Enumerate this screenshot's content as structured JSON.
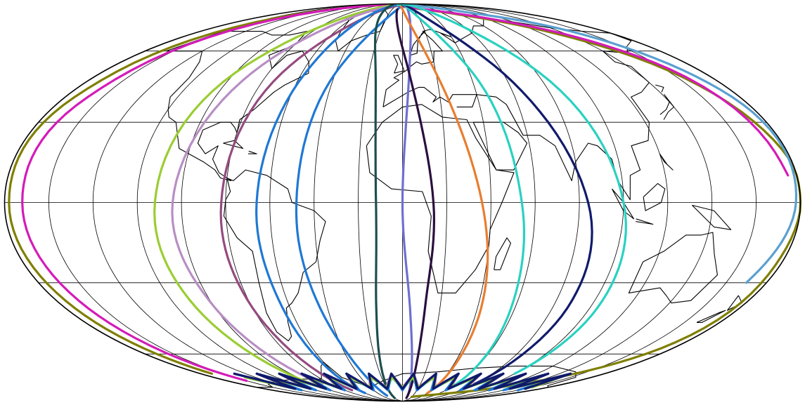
{
  "map": {
    "projection": "mollweide",
    "graticule": {
      "lon_step_deg": 20,
      "lat_step_deg": 30
    },
    "outline_color": "#000000",
    "coastline_color": "#000000",
    "background": "#ffffff"
  },
  "tracks": [
    {
      "id": "t01",
      "color": "#7f7f00",
      "pts": [
        [
          -170,
          -70
        ],
        [
          -175,
          -40
        ],
        [
          -178,
          0
        ],
        [
          -175,
          40
        ],
        [
          -150,
          80
        ],
        [
          -60,
          88
        ],
        [
          80,
          80
        ],
        [
          150,
          60
        ],
        [
          178,
          20
        ],
        [
          178,
          -20
        ],
        [
          170,
          -60
        ],
        [
          120,
          -78
        ],
        [
          20,
          -85
        ]
      ]
    },
    {
      "id": "t02",
      "color": "#d41bb8",
      "pts": [
        [
          -160,
          -74
        ],
        [
          -168,
          -40
        ],
        [
          -172,
          0
        ],
        [
          -168,
          40
        ],
        [
          -140,
          82
        ],
        [
          -40,
          88
        ],
        [
          100,
          78
        ],
        [
          160,
          55
        ],
        [
          176,
          10
        ]
      ]
    },
    {
      "id": "t03",
      "color": "#9acd32",
      "pts": [
        [
          -100,
          -78
        ],
        [
          -110,
          -40
        ],
        [
          -112,
          0
        ],
        [
          -100,
          50
        ],
        [
          -60,
          84
        ],
        [
          0,
          88
        ]
      ]
    },
    {
      "id": "t04",
      "color": "#b88ec4",
      "pts": [
        [
          -90,
          -76
        ],
        [
          -100,
          -40
        ],
        [
          -104,
          0
        ],
        [
          -90,
          50
        ],
        [
          -60,
          80
        ],
        [
          -20,
          88
        ]
      ]
    },
    {
      "id": "t05",
      "color": "#944b7f",
      "pts": [
        [
          -70,
          -80
        ],
        [
          -80,
          -40
        ],
        [
          -82,
          0
        ],
        [
          -72,
          50
        ],
        [
          -40,
          82
        ],
        [
          0,
          88
        ]
      ]
    },
    {
      "id": "t06",
      "color": "#1f78d4",
      "pts": [
        [
          -60,
          -82
        ],
        [
          -64,
          -40
        ],
        [
          -66,
          0
        ],
        [
          -58,
          50
        ],
        [
          -40,
          84
        ],
        [
          0,
          89
        ]
      ]
    },
    {
      "id": "t07",
      "color": "#1f78d4",
      "pts": [
        [
          -30,
          -84
        ],
        [
          -44,
          -40
        ],
        [
          -48,
          0
        ],
        [
          -40,
          50
        ],
        [
          -10,
          84
        ],
        [
          30,
          88
        ]
      ]
    },
    {
      "id": "t08",
      "color": "#1d4f4f",
      "pts": [
        [
          -20,
          -86
        ],
        [
          -14,
          -40
        ],
        [
          -12,
          0
        ],
        [
          -16,
          50
        ],
        [
          -30,
          80
        ],
        [
          -40,
          88
        ]
      ]
    },
    {
      "id": "t09",
      "color": "#6f6fd0",
      "pts": [
        [
          10,
          -84
        ],
        [
          4,
          -40
        ],
        [
          0,
          0
        ],
        [
          4,
          50
        ],
        [
          10,
          84
        ]
      ]
    },
    {
      "id": "t10",
      "color": "#2a0f3f",
      "pts": [
        [
          10,
          -86
        ],
        [
          12,
          -40
        ],
        [
          14,
          0
        ],
        [
          4,
          50
        ],
        [
          -10,
          84
        ]
      ]
    },
    {
      "id": "t11",
      "color": "#e87d2f",
      "pts": [
        [
          40,
          -82
        ],
        [
          42,
          -40
        ],
        [
          36,
          0
        ],
        [
          20,
          50
        ],
        [
          0,
          84
        ],
        [
          -20,
          88
        ]
      ]
    },
    {
      "id": "t12",
      "color": "#2ad1c1",
      "pts": [
        [
          60,
          -78
        ],
        [
          58,
          -40
        ],
        [
          54,
          0
        ],
        [
          42,
          50
        ],
        [
          10,
          86
        ],
        [
          -20,
          88
        ]
      ]
    },
    {
      "id": "t13",
      "color": "#101a6b",
      "pts": [
        [
          80,
          -76
        ],
        [
          88,
          -40
        ],
        [
          84,
          0
        ],
        [
          60,
          50
        ],
        [
          20,
          84
        ],
        [
          0,
          88
        ]
      ]
    },
    {
      "id": "t14",
      "color": "#5aa0d0",
      "pts": [
        [
          170,
          -30
        ],
        [
          178,
          0
        ],
        [
          176,
          40
        ],
        [
          150,
          70
        ],
        [
          100,
          82
        ],
        [
          40,
          88
        ]
      ]
    },
    {
      "id": "t15",
      "color": "#2ad1c1",
      "pts": [
        [
          100,
          -70
        ],
        [
          104,
          -40
        ],
        [
          100,
          0
        ],
        [
          82,
          50
        ],
        [
          40,
          84
        ],
        [
          0,
          89
        ]
      ]
    }
  ],
  "south_zigzag": [
    {
      "color": "#b88ec4"
    },
    {
      "color": "#2ad1c1"
    },
    {
      "color": "#1f78d4"
    },
    {
      "color": "#9acd32"
    },
    {
      "color": "#101a6b"
    }
  ]
}
